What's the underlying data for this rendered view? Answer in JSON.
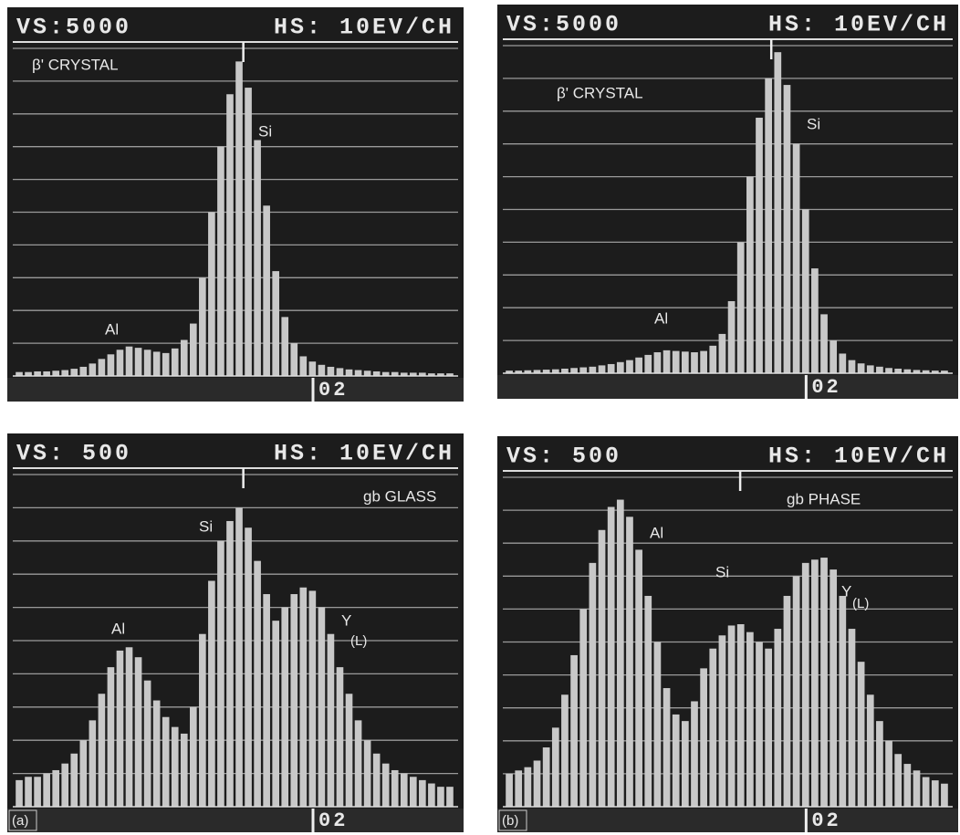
{
  "chart_data": [
    {
      "type": "bar",
      "vertical_scale": "VS:5000",
      "horizontal_scale": "HS: 10EV/CH",
      "ylim": [
        0,
        5000
      ],
      "grid": true,
      "color": "#c8c8c8",
      "annotations": [
        "β' CRYSTAL",
        "Si",
        "Al"
      ],
      "marker_label": "02",
      "values": [
        60,
        60,
        70,
        70,
        80,
        90,
        110,
        140,
        190,
        260,
        330,
        400,
        450,
        430,
        400,
        370,
        350,
        420,
        550,
        800,
        1500,
        2500,
        3500,
        4300,
        4800,
        4400,
        3600,
        2600,
        1600,
        900,
        500,
        300,
        220,
        170,
        140,
        120,
        100,
        90,
        80,
        70,
        60,
        60,
        50,
        50,
        50,
        40,
        40,
        40
      ]
    },
    {
      "type": "bar",
      "vertical_scale": "VS:5000",
      "horizontal_scale": "HS: 10EV/CH",
      "ylim": [
        0,
        5000
      ],
      "grid": true,
      "color": "#c8c8c8",
      "annotations": [
        "β' CRYSTAL",
        "Si",
        "Al"
      ],
      "marker_label": "02",
      "values": [
        40,
        40,
        45,
        50,
        55,
        60,
        70,
        80,
        90,
        100,
        120,
        140,
        170,
        200,
        240,
        280,
        320,
        350,
        340,
        330,
        320,
        340,
        420,
        600,
        1100,
        2000,
        3000,
        3900,
        4500,
        4900,
        4400,
        3500,
        2500,
        1600,
        900,
        500,
        300,
        200,
        150,
        120,
        100,
        80,
        70,
        60,
        50,
        45,
        40,
        40
      ]
    },
    {
      "type": "bar",
      "vertical_scale": "VS: 500",
      "horizontal_scale": "HS: 10EV/CH",
      "ylim": [
        0,
        500
      ],
      "grid": true,
      "color": "#c8c8c8",
      "annotations": [
        "gb GLASS",
        "Si",
        "Al",
        "Y",
        "(L)"
      ],
      "marker_label": "02",
      "panel_label": "(a)",
      "values": [
        40,
        45,
        45,
        50,
        55,
        65,
        80,
        100,
        130,
        170,
        210,
        235,
        240,
        225,
        190,
        160,
        135,
        120,
        110,
        150,
        260,
        340,
        400,
        430,
        450,
        420,
        370,
        320,
        280,
        300,
        320,
        330,
        325,
        300,
        260,
        210,
        170,
        130,
        100,
        80,
        65,
        55,
        50,
        45,
        40,
        35,
        30,
        30
      ]
    },
    {
      "type": "bar",
      "vertical_scale": "VS: 500",
      "horizontal_scale": "HS: 10EV/CH",
      "ylim": [
        0,
        500
      ],
      "grid": true,
      "color": "#c8c8c8",
      "annotations": [
        "gb PHASE",
        "Al",
        "Si",
        "Y",
        "(L)"
      ],
      "marker_label": "02",
      "panel_label": "(b)",
      "values": [
        50,
        55,
        60,
        70,
        90,
        120,
        170,
        230,
        300,
        370,
        420,
        455,
        466,
        440,
        390,
        320,
        250,
        180,
        140,
        130,
        160,
        210,
        240,
        260,
        275,
        277,
        265,
        250,
        240,
        270,
        320,
        350,
        370,
        375,
        378,
        360,
        320,
        270,
        220,
        170,
        130,
        100,
        80,
        65,
        55,
        45,
        40,
        35
      ]
    }
  ]
}
